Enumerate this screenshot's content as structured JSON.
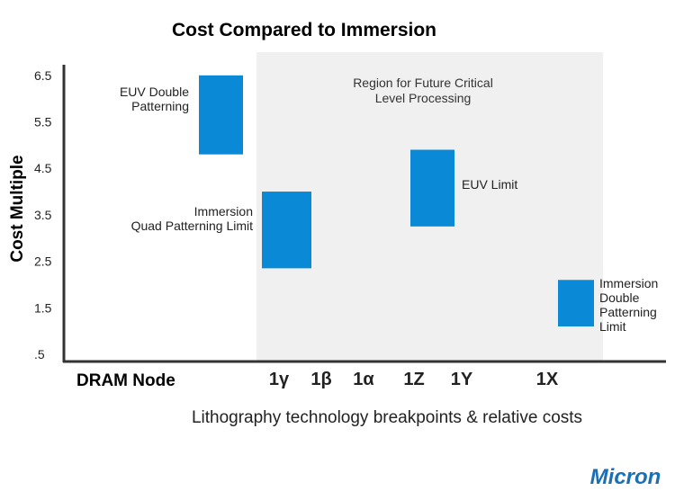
{
  "chart_data": {
    "type": "bar",
    "subtype": "floating-range",
    "title": "Cost Compared to Immersion",
    "ylabel": "Cost Multiple",
    "xlabel": "Lithography technology breakpoints & relative costs",
    "x_axis_caption": "DRAM Node",
    "ylim": [
      0.5,
      6.5
    ],
    "y_ticks": [
      ".5",
      "1.5",
      "2.5",
      "3.5",
      "4.5",
      "5.5",
      "6.5"
    ],
    "y_tick_values": [
      0.5,
      1.5,
      2.5,
      3.5,
      4.5,
      5.5,
      6.5
    ],
    "categories": [
      "1γ",
      "1β",
      "1α",
      "1Z",
      "1Y",
      "1X"
    ],
    "grid": false,
    "region": {
      "label_line1": "Region for Future Critical",
      "label_line2": "Level Processing",
      "color": "#f0f0f0"
    },
    "bars": [
      {
        "label_lines": [
          "EUV Double",
          "Patterning"
        ],
        "low": 4.8,
        "high": 6.5
      },
      {
        "label_lines": [
          "Immersion",
          "Quad Patterning Limit"
        ],
        "low": 2.35,
        "high": 4.0
      },
      {
        "label_lines": [
          "EUV Limit"
        ],
        "low": 3.25,
        "high": 4.9
      },
      {
        "label_lines": [
          "Immersion",
          "Double",
          "Patterning",
          "Limit"
        ],
        "low": 1.1,
        "high": 2.1
      }
    ],
    "bar_color": "#0a8ad6"
  },
  "logo": {
    "text": "Micron",
    "color": "#1a6fb5"
  }
}
